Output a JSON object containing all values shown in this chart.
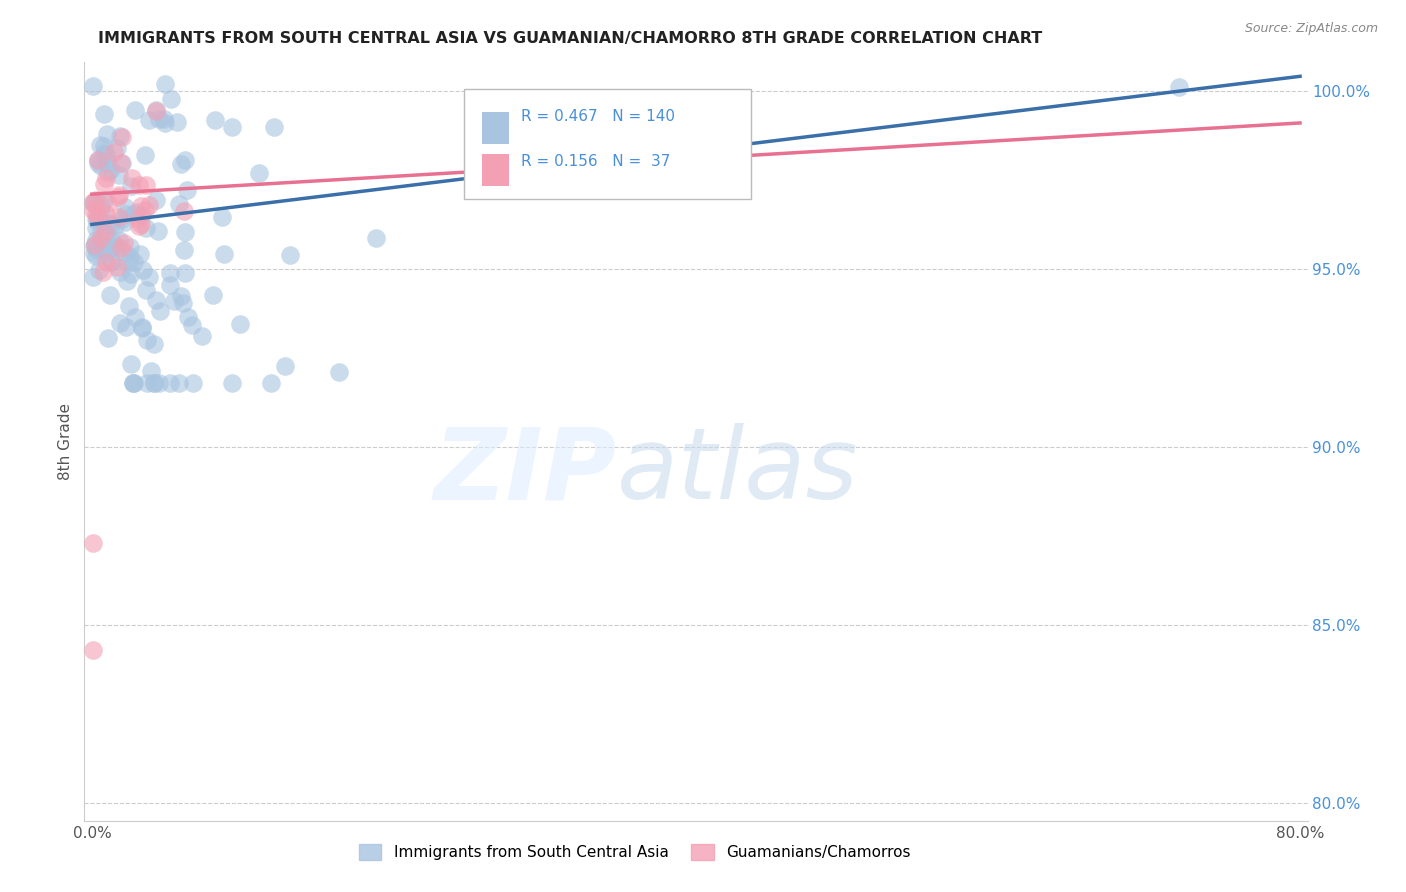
{
  "title": "IMMIGRANTS FROM SOUTH CENTRAL ASIA VS GUAMANIAN/CHAMORRO 8TH GRADE CORRELATION CHART",
  "source": "Source: ZipAtlas.com",
  "ylabel": "8th Grade",
  "xlim_min": -0.005,
  "xlim_max": 0.805,
  "ylim_min": 0.795,
  "ylim_max": 1.008,
  "x_ticks": [
    0.0,
    0.1,
    0.2,
    0.3,
    0.4,
    0.5,
    0.6,
    0.7,
    0.8
  ],
  "x_tick_labels": [
    "0.0%",
    "",
    "",
    "",
    "",
    "",
    "",
    "",
    "80.0%"
  ],
  "y_ticks": [
    0.8,
    0.85,
    0.9,
    0.95,
    1.0
  ],
  "y_tick_labels": [
    "80.0%",
    "85.0%",
    "90.0%",
    "95.0%",
    "100.0%"
  ],
  "blue_R": 0.467,
  "blue_N": 140,
  "pink_R": 0.156,
  "pink_N": 37,
  "blue_color": "#a8c4e0",
  "pink_color": "#f4a0b4",
  "blue_line_color": "#3a6faa",
  "pink_line_color": "#e87090",
  "legend_blue_label": "Immigrants from South Central Asia",
  "legend_pink_label": "Guamanians/Chamorros",
  "grid_color": "#cccccc",
  "spine_color": "#cccccc",
  "tick_label_color": "#555555",
  "right_tick_color": "#4a90d9",
  "title_color": "#222222",
  "source_color": "#888888"
}
